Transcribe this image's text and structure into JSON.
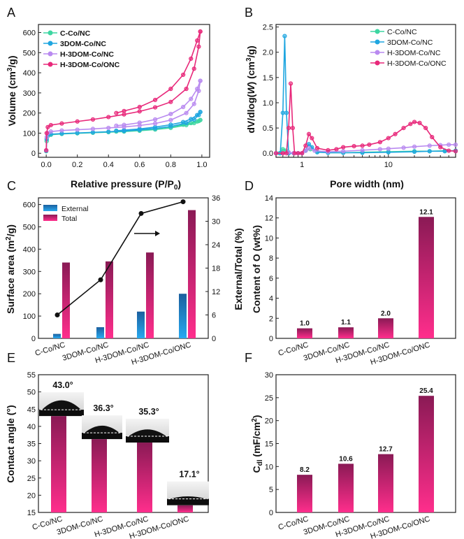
{
  "colors": {
    "ccn": "#3dd6a2",
    "dom": "#1fa6e0",
    "hdom": "#b98af0",
    "honc": "#e8287a",
    "external": "#1e8fd0",
    "total": "#e8287a",
    "bar_top": "#8a1a55",
    "bar_bottom": "#ff2e8c"
  },
  "chart_data": [
    {
      "panel": "A",
      "type": "line",
      "xlabel": "Relative pressure (P/P",
      "xlabel_sub": "0",
      "ylabel": "Volume (cm",
      "ylabel_sup": "3",
      "ylabel_end": "/g)",
      "xlim": [
        -0.05,
        1.05
      ],
      "ylim": [
        -20,
        640
      ],
      "xticks": [
        "0.0",
        "0.2",
        "0.4",
        "0.6",
        "0.8",
        "1.0"
      ],
      "yticks": [
        "0",
        "100",
        "200",
        "300",
        "400",
        "500",
        "600"
      ],
      "legend": "top-left",
      "series": [
        {
          "name": "C-Co/NC",
          "color": "ccn",
          "adsorption": [
            [
              0.0,
              10
            ],
            [
              0.003,
              60
            ],
            [
              0.01,
              85
            ],
            [
              0.03,
              92
            ],
            [
              0.1,
              96
            ],
            [
              0.2,
              99
            ],
            [
              0.3,
              102
            ],
            [
              0.4,
              105
            ],
            [
              0.5,
              108
            ],
            [
              0.6,
              112
            ],
            [
              0.7,
              118
            ],
            [
              0.8,
              126
            ],
            [
              0.9,
              140
            ],
            [
              0.95,
              150
            ],
            [
              0.98,
              160
            ],
            [
              0.99,
              165
            ]
          ],
          "desorption": [
            [
              0.99,
              165
            ],
            [
              0.97,
              158
            ],
            [
              0.93,
              150
            ],
            [
              0.88,
              142
            ],
            [
              0.8,
              132
            ],
            [
              0.7,
              123
            ],
            [
              0.6,
              116
            ],
            [
              0.5,
              111
            ],
            [
              0.45,
              108
            ]
          ]
        },
        {
          "name": "3DOM-Co/NC",
          "color": "dom",
          "adsorption": [
            [
              0.0,
              12
            ],
            [
              0.003,
              70
            ],
            [
              0.01,
              90
            ],
            [
              0.03,
              95
            ],
            [
              0.1,
              98
            ],
            [
              0.2,
              101
            ],
            [
              0.3,
              104
            ],
            [
              0.4,
              107
            ],
            [
              0.5,
              111
            ],
            [
              0.6,
              116
            ],
            [
              0.7,
              123
            ],
            [
              0.8,
              133
            ],
            [
              0.9,
              150
            ],
            [
              0.95,
              168
            ],
            [
              0.98,
              190
            ],
            [
              0.99,
              205
            ]
          ],
          "desorption": [
            [
              0.99,
              205
            ],
            [
              0.97,
              190
            ],
            [
              0.93,
              170
            ],
            [
              0.88,
              155
            ],
            [
              0.8,
              142
            ],
            [
              0.7,
              130
            ],
            [
              0.6,
              121
            ],
            [
              0.5,
              115
            ],
            [
              0.45,
              112
            ]
          ]
        },
        {
          "name": "H-3DOM-Co/NC",
          "color": "hdom",
          "adsorption": [
            [
              0.0,
              14
            ],
            [
              0.003,
              80
            ],
            [
              0.01,
              100
            ],
            [
              0.03,
              108
            ],
            [
              0.1,
              113
            ],
            [
              0.2,
              117
            ],
            [
              0.3,
              121
            ],
            [
              0.4,
              126
            ],
            [
              0.5,
              131
            ],
            [
              0.6,
              138
            ],
            [
              0.7,
              148
            ],
            [
              0.8,
              165
            ],
            [
              0.9,
              200
            ],
            [
              0.95,
              245
            ],
            [
              0.98,
              310
            ],
            [
              0.99,
              360
            ]
          ],
          "desorption": [
            [
              0.99,
              360
            ],
            [
              0.97,
              320
            ],
            [
              0.93,
              270
            ],
            [
              0.88,
              230
            ],
            [
              0.8,
              195
            ],
            [
              0.7,
              168
            ],
            [
              0.6,
              152
            ],
            [
              0.5,
              141
            ],
            [
              0.45,
              137
            ]
          ]
        },
        {
          "name": "H-3DOM-Co/ONC",
          "color": "honc",
          "adsorption": [
            [
              0.0,
              15
            ],
            [
              0.003,
              100
            ],
            [
              0.01,
              130
            ],
            [
              0.03,
              140
            ],
            [
              0.1,
              148
            ],
            [
              0.2,
              158
            ],
            [
              0.3,
              168
            ],
            [
              0.4,
              180
            ],
            [
              0.5,
              193
            ],
            [
              0.6,
              208
            ],
            [
              0.7,
              228
            ],
            [
              0.8,
              255
            ],
            [
              0.9,
              320
            ],
            [
              0.95,
              420
            ],
            [
              0.98,
              530
            ],
            [
              0.99,
              605
            ]
          ],
          "desorption": [
            [
              0.99,
              605
            ],
            [
              0.97,
              560
            ],
            [
              0.93,
              470
            ],
            [
              0.88,
              390
            ],
            [
              0.8,
              320
            ],
            [
              0.7,
              265
            ],
            [
              0.6,
              230
            ],
            [
              0.5,
              210
            ],
            [
              0.45,
              200
            ]
          ]
        }
      ]
    },
    {
      "panel": "B",
      "type": "line",
      "xscale": "log",
      "xlabel": "Pore width (nm)",
      "ylabel_pre": "dV/dlog(",
      "ylabel_w": "W",
      "ylabel_mid": ") (cm",
      "ylabel_sup": "3",
      "ylabel_end": "/g)",
      "xlim": [
        0.5,
        60
      ],
      "ylim": [
        -0.08,
        2.55
      ],
      "xticks": [
        {
          "v": 1,
          "label": "1"
        },
        {
          "v": 10,
          "label": "10"
        }
      ],
      "yticks": [
        "0.0",
        "0.5",
        "1.0",
        "1.5",
        "2.0",
        "2.5"
      ],
      "legend": "top-right",
      "series": [
        {
          "name": "C-Co/NC",
          "color": "ccn",
          "points": [
            [
              0.5,
              0
            ],
            [
              0.55,
              0
            ],
            [
              0.6,
              0.08
            ],
            [
              0.65,
              0.05
            ],
            [
              0.7,
              0
            ],
            [
              0.8,
              0
            ],
            [
              0.9,
              0
            ],
            [
              1.0,
              0
            ],
            [
              1.1,
              0.05
            ],
            [
              1.25,
              0.08
            ],
            [
              1.5,
              0.03
            ],
            [
              2,
              0.01
            ],
            [
              3,
              0.01
            ],
            [
              5,
              0.02
            ],
            [
              10,
              0.03
            ],
            [
              20,
              0.04
            ],
            [
              30,
              0.04
            ],
            [
              45,
              0.05
            ],
            [
              60,
              0.05
            ]
          ]
        },
        {
          "name": "3DOM-Co/NC",
          "color": "dom",
          "points": [
            [
              0.5,
              0
            ],
            [
              0.56,
              0
            ],
            [
              0.6,
              0.8
            ],
            [
              0.63,
              2.32
            ],
            [
              0.66,
              0.8
            ],
            [
              0.7,
              0
            ],
            [
              0.8,
              0
            ],
            [
              0.9,
              0
            ],
            [
              1.0,
              0
            ],
            [
              1.1,
              0.05
            ],
            [
              1.2,
              0.18
            ],
            [
              1.3,
              0.12
            ],
            [
              1.5,
              0.02
            ],
            [
              2,
              0.01
            ],
            [
              3,
              0.01
            ],
            [
              5,
              0.01
            ],
            [
              10,
              0.02
            ],
            [
              20,
              0.03
            ],
            [
              30,
              0.04
            ],
            [
              45,
              0.04
            ],
            [
              60,
              0.05
            ]
          ]
        },
        {
          "name": "H-3DOM-Co/NC",
          "color": "hdom",
          "points": [
            [
              0.5,
              0
            ],
            [
              0.6,
              0
            ],
            [
              0.7,
              0.02
            ],
            [
              0.8,
              0
            ],
            [
              0.9,
              0
            ],
            [
              1.0,
              0
            ],
            [
              1.1,
              0.05
            ],
            [
              1.2,
              0.1
            ],
            [
              1.4,
              0.05
            ],
            [
              2,
              0.03
            ],
            [
              3,
              0.04
            ],
            [
              5,
              0.06
            ],
            [
              8,
              0.08
            ],
            [
              10,
              0.09
            ],
            [
              15,
              0.11
            ],
            [
              20,
              0.13
            ],
            [
              30,
              0.15
            ],
            [
              40,
              0.16
            ],
            [
              50,
              0.17
            ],
            [
              60,
              0.17
            ]
          ]
        },
        {
          "name": "H-3DOM-Co/ONC",
          "color": "honc",
          "points": [
            [
              0.5,
              0
            ],
            [
              0.6,
              0
            ],
            [
              0.66,
              0
            ],
            [
              0.7,
              0.5
            ],
            [
              0.74,
              1.38
            ],
            [
              0.78,
              0.5
            ],
            [
              0.82,
              0
            ],
            [
              0.9,
              0
            ],
            [
              1.0,
              0
            ],
            [
              1.1,
              0.15
            ],
            [
              1.2,
              0.38
            ],
            [
              1.3,
              0.3
            ],
            [
              1.5,
              0.1
            ],
            [
              2,
              0.06
            ],
            [
              2.5,
              0.08
            ],
            [
              3,
              0.12
            ],
            [
              4,
              0.14
            ],
            [
              5,
              0.15
            ],
            [
              6,
              0.17
            ],
            [
              8,
              0.22
            ],
            [
              10,
              0.3
            ],
            [
              12,
              0.38
            ],
            [
              15,
              0.5
            ],
            [
              18,
              0.58
            ],
            [
              20,
              0.62
            ],
            [
              23,
              0.6
            ],
            [
              27,
              0.5
            ],
            [
              32,
              0.32
            ],
            [
              40,
              0.12
            ],
            [
              50,
              0.05
            ],
            [
              60,
              0.04
            ]
          ]
        }
      ]
    },
    {
      "panel": "C",
      "type": "bar",
      "ylabel": "Surface area (m",
      "ylabel_sup": "2",
      "ylabel_end": "/g)",
      "ylabel_right": "External/Total (%)",
      "ylim": [
        0,
        630
      ],
      "ylim_right": [
        0,
        36
      ],
      "yticks": [
        "0",
        "100",
        "200",
        "300",
        "400",
        "500",
        "600"
      ],
      "yticks_right": [
        "0",
        "6",
        "12",
        "18",
        "24",
        "30",
        "36"
      ],
      "categories": [
        "C-Co/NC",
        "3DOM-Co/NC",
        "H-3DOM-Co/NC",
        "H-3DOM-Co/ONC"
      ],
      "legend": "top-left",
      "series": [
        {
          "name": "External",
          "values": [
            20,
            50,
            120,
            200
          ],
          "color": "external"
        },
        {
          "name": "Total",
          "values": [
            340,
            345,
            385,
            575
          ],
          "color": "total"
        }
      ],
      "ratio_line": [
        6,
        15,
        32,
        35
      ]
    },
    {
      "panel": "D",
      "type": "bar",
      "ylabel": "Content of O (wt%)",
      "ylim": [
        0,
        14
      ],
      "yticks": [
        "0",
        "2",
        "4",
        "6",
        "8",
        "10",
        "12",
        "14"
      ],
      "categories": [
        "C-Co/NC",
        "3DOM-Co/NC",
        "H-3DOM-Co/NC",
        "H-3DOM-Co/ONC"
      ],
      "values": [
        1.0,
        1.1,
        2.0,
        12.1
      ],
      "labels": [
        "1.0",
        "1.1",
        "2.0",
        "12.1"
      ]
    },
    {
      "panel": "E",
      "type": "bar",
      "ylabel": "Contact angle (°)",
      "ylim": [
        15,
        55
      ],
      "yticks": [
        "15",
        "20",
        "25",
        "30",
        "35",
        "40",
        "45",
        "50",
        "55"
      ],
      "categories": [
        "C-Co/NC",
        "3DOM-Co/NC",
        "H-3DOM-Co/NC",
        "H-3DOM-Co/ONC"
      ],
      "values": [
        43.0,
        36.3,
        35.3,
        17.1
      ],
      "labels": [
        "43.0°",
        "36.3°",
        "35.3°",
        "17.1°"
      ]
    },
    {
      "panel": "F",
      "type": "bar",
      "ylabel_main": "C",
      "ylabel_sub": "dl",
      "ylabel_unit": " (mF/cm",
      "ylabel_sup": "2",
      "ylabel_end": ")",
      "ylim": [
        0,
        30
      ],
      "yticks": [
        "0",
        "5",
        "10",
        "15",
        "20",
        "25",
        "30"
      ],
      "categories": [
        "C-Co/NC",
        "3DOM-Co/NC",
        "H-3DOM-Co/NC",
        "H-3DOM-Co/ONC"
      ],
      "values": [
        8.2,
        10.6,
        12.7,
        25.4
      ],
      "labels": [
        "8.2",
        "10.6",
        "12.7",
        "25.4"
      ]
    }
  ],
  "panel_labels": [
    "A",
    "B",
    "C",
    "D",
    "E",
    "F"
  ]
}
